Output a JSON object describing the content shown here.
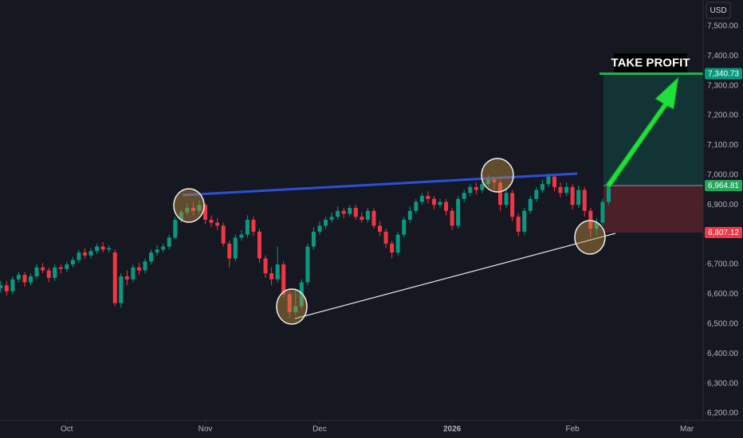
{
  "chart_data": {
    "type": "candlestick",
    "currency": "USD",
    "up_color": "#089981",
    "down_color": "#f23645",
    "x": [
      -11,
      -10,
      -9,
      -8,
      -7,
      -6,
      -5,
      -4,
      -3,
      -2,
      -1,
      0,
      1,
      2,
      3,
      4,
      5,
      6,
      7,
      8,
      9,
      10,
      11,
      12,
      13,
      14,
      15,
      16,
      17,
      18,
      19,
      20,
      21,
      22,
      23,
      24,
      25,
      26,
      27,
      28,
      29,
      30,
      31,
      32,
      33,
      34,
      35,
      36,
      37,
      38,
      39,
      40,
      41,
      42,
      43,
      44,
      45,
      46,
      47,
      48,
      49,
      50,
      51,
      52,
      53,
      54,
      55,
      56,
      57,
      58,
      59,
      60,
      61,
      62,
      63,
      64,
      65,
      66,
      67,
      68,
      69,
      70,
      71,
      72,
      73,
      74,
      75,
      76,
      77,
      78,
      79,
      80,
      81,
      82,
      83,
      84,
      85,
      86,
      87,
      88,
      89,
      90
    ],
    "open": [
      6620,
      6630,
      6610,
      6650,
      6665,
      6640,
      6660,
      6690,
      6680,
      6655,
      6690,
      6685,
      6700,
      6715,
      6740,
      6730,
      6745,
      6760,
      6750,
      6740,
      6570,
      6660,
      6650,
      6690,
      6680,
      6710,
      6740,
      6750,
      6760,
      6790,
      6850,
      6875,
      6890,
      6880,
      6900,
      6850,
      6840,
      6830,
      6770,
      6720,
      6790,
      6800,
      6850,
      6810,
      6720,
      6670,
      6650,
      6700,
      6600,
      6540,
      6560,
      6640,
      6760,
      6810,
      6830,
      6850,
      6860,
      6880,
      6870,
      6890,
      6860,
      6850,
      6880,
      6830,
      6810,
      6770,
      6740,
      6800,
      6850,
      6880,
      6910,
      6930,
      6920,
      6900,
      6910,
      6880,
      6830,
      6920,
      6940,
      6960,
      6950,
      6970,
      6985,
      6975,
      6900,
      6940,
      6860,
      6810,
      6880,
      6920,
      6950,
      6970,
      6995,
      6960,
      6940,
      6960,
      6900,
      6950,
      6880,
      6820,
      6840,
      6910
    ],
    "high": [
      6645,
      6645,
      6660,
      6675,
      6675,
      6670,
      6700,
      6705,
      6690,
      6700,
      6700,
      6710,
      6725,
      6750,
      6755,
      6755,
      6770,
      6775,
      6765,
      6750,
      6670,
      6680,
      6700,
      6705,
      6720,
      6750,
      6765,
      6770,
      6800,
      6860,
      6885,
      6905,
      6910,
      6915,
      6905,
      6865,
      6855,
      6840,
      6780,
      6800,
      6815,
      6865,
      6860,
      6820,
      6730,
      6690,
      6760,
      6710,
      6610,
      6620,
      6650,
      6770,
      6825,
      6845,
      6860,
      6875,
      6895,
      6890,
      6900,
      6900,
      6875,
      6890,
      6890,
      6845,
      6820,
      6780,
      6810,
      6860,
      6895,
      6920,
      6940,
      6945,
      6930,
      6920,
      6920,
      6890,
      6930,
      6950,
      6970,
      6975,
      6985,
      7000,
      6995,
      6985,
      6955,
      6950,
      6870,
      6890,
      6930,
      6960,
      6985,
      7005,
      7000,
      6975,
      6975,
      6970,
      6965,
      6960,
      6890,
      6855,
      6920,
      6980
    ],
    "low": [
      6605,
      6595,
      6600,
      6640,
      6625,
      6630,
      6650,
      6670,
      6640,
      6645,
      6670,
      6675,
      6690,
      6705,
      6720,
      6720,
      6735,
      6740,
      6740,
      6560,
      6555,
      6630,
      6640,
      6665,
      6670,
      6700,
      6730,
      6740,
      6750,
      6785,
      6840,
      6865,
      6865,
      6870,
      6835,
      6825,
      6815,
      6760,
      6690,
      6710,
      6780,
      6790,
      6795,
      6705,
      6655,
      6630,
      6640,
      6590,
      6520,
      6530,
      6550,
      6630,
      6750,
      6800,
      6820,
      6840,
      6850,
      6855,
      6860,
      6850,
      6840,
      6840,
      6820,
      6795,
      6755,
      6720,
      6730,
      6790,
      6840,
      6870,
      6900,
      6905,
      6885,
      6890,
      6865,
      6815,
      6820,
      6910,
      6930,
      6935,
      6940,
      6960,
      6950,
      6880,
      6890,
      6845,
      6795,
      6800,
      6870,
      6910,
      6940,
      6960,
      6945,
      6925,
      6930,
      6885,
      6890,
      6860,
      6790,
      6800,
      6830,
      6900
    ],
    "close": [
      6630,
      6610,
      6650,
      6665,
      6640,
      6660,
      6690,
      6680,
      6655,
      6690,
      6685,
      6700,
      6715,
      6740,
      6730,
      6745,
      6760,
      6750,
      6755,
      6570,
      6660,
      6650,
      6690,
      6680,
      6710,
      6740,
      6750,
      6760,
      6790,
      6850,
      6875,
      6890,
      6880,
      6900,
      6850,
      6840,
      6830,
      6770,
      6720,
      6790,
      6800,
      6850,
      6810,
      6720,
      6670,
      6650,
      6700,
      6600,
      6540,
      6560,
      6640,
      6760,
      6810,
      6830,
      6850,
      6860,
      6880,
      6870,
      6890,
      6860,
      6850,
      6880,
      6830,
      6810,
      6770,
      6740,
      6800,
      6850,
      6880,
      6910,
      6930,
      6920,
      6900,
      6910,
      6880,
      6830,
      6920,
      6940,
      6960,
      6950,
      6970,
      6985,
      6975,
      6900,
      6940,
      6860,
      6810,
      6880,
      6920,
      6950,
      6970,
      6995,
      6960,
      6940,
      6960,
      6900,
      6950,
      6880,
      6820,
      6840,
      6910,
      6964.81
    ],
    "xlim": [
      -11.1,
      105.7
    ],
    "xticks": [
      {
        "value": 0,
        "label": "Oct"
      },
      {
        "value": 23,
        "label": "Nov"
      },
      {
        "value": 42,
        "label": "Dec"
      },
      {
        "value": 64,
        "label": "2026"
      },
      {
        "value": 84,
        "label": "Feb"
      },
      {
        "value": 103,
        "label": "Mar"
      }
    ],
    "ylim": [
      6176,
      7588
    ],
    "yticks": [
      {
        "value": 6200,
        "label": "6,200.00"
      },
      {
        "value": 6300,
        "label": "6,300.00"
      },
      {
        "value": 6400,
        "label": "6,400.00"
      },
      {
        "value": 6500,
        "label": "6,500.00"
      },
      {
        "value": 6600,
        "label": "6,600.00"
      },
      {
        "value": 6700,
        "label": "6,700.00"
      },
      {
        "value": 6800,
        "label": "6,800.00"
      },
      {
        "value": 6900,
        "label": "6,900.00"
      },
      {
        "value": 7000,
        "label": "7,000.00"
      },
      {
        "value": 7100,
        "label": "7,100.00"
      },
      {
        "value": 7200,
        "label": "7,200.00"
      },
      {
        "value": 7300,
        "label": "7,300.00"
      },
      {
        "value": 7400,
        "label": "7,400.00"
      },
      {
        "value": 7500,
        "label": "7,500.00"
      }
    ],
    "position": {
      "take_profit": {
        "value": 7340.73,
        "label": "7,340.73",
        "color": "#089981"
      },
      "entry": {
        "value": 6964.81,
        "label": "6,964.81",
        "color": "#26a65b"
      },
      "stop": {
        "value": 6807.12,
        "label": "6,807.12",
        "color": "#f23645"
      }
    },
    "annotation": "TAKE PROFIT"
  }
}
